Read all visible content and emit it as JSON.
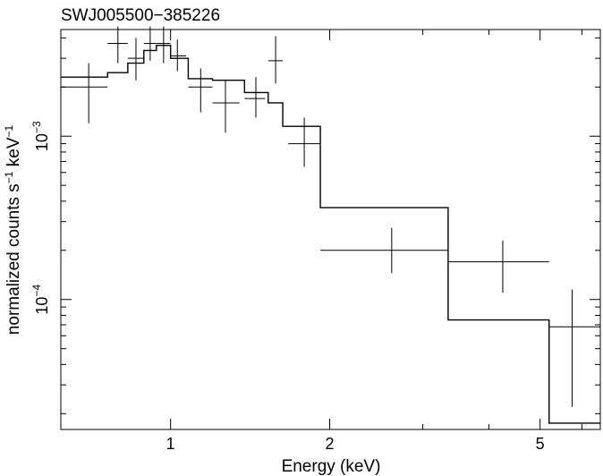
{
  "chart_data": {
    "type": "scatter",
    "title": "SWJ005500−385226",
    "xlabel": "Energy (keV)",
    "ylabel": {
      "base": "normalized counts s",
      "sup1": "−1",
      "mid": " keV",
      "sup2": "−1"
    },
    "x_scale": "log",
    "y_scale": "log",
    "xlim": [
      0.62,
      6.5
    ],
    "ylim": [
      1.6e-05,
      0.0045
    ],
    "x_ticks": [
      {
        "value": 1,
        "label": "1"
      },
      {
        "value": 2,
        "label": "2"
      },
      {
        "value": 5,
        "label": "5"
      }
    ],
    "y_ticks": [
      {
        "value": 0.001,
        "label": {
          "base": "10",
          "exp": "−3"
        }
      },
      {
        "value": 0.0001,
        "label": {
          "base": "10",
          "exp": "−4"
        }
      }
    ],
    "series": [
      {
        "kind": "data",
        "points": [
          {
            "x": 0.7,
            "xlo": 0.62,
            "xhi": 0.76,
            "y": 0.002,
            "ylo": 0.0012,
            "yhi": 0.0028
          },
          {
            "x": 0.795,
            "xlo": 0.76,
            "xhi": 0.83,
            "y": 0.0037,
            "ylo": 0.0028,
            "yhi": 0.0047
          },
          {
            "x": 0.86,
            "xlo": 0.83,
            "xhi": 0.89,
            "y": 0.003,
            "ylo": 0.0022,
            "yhi": 0.004
          },
          {
            "x": 0.915,
            "xlo": 0.89,
            "xhi": 0.94,
            "y": 0.0037,
            "ylo": 0.0029,
            "yhi": 0.0047
          },
          {
            "x": 0.97,
            "xlo": 0.94,
            "xhi": 1.0,
            "y": 0.0037,
            "ylo": 0.0028,
            "yhi": 0.0047
          },
          {
            "x": 1.03,
            "xlo": 1.0,
            "xhi": 1.07,
            "y": 0.0031,
            "ylo": 0.0025,
            "yhi": 0.0039
          },
          {
            "x": 1.14,
            "xlo": 1.08,
            "xhi": 1.2,
            "y": 0.002,
            "ylo": 0.0014,
            "yhi": 0.0026
          },
          {
            "x": 1.27,
            "xlo": 1.2,
            "xhi": 1.35,
            "y": 0.0016,
            "ylo": 0.00105,
            "yhi": 0.0022
          },
          {
            "x": 1.45,
            "xlo": 1.38,
            "xhi": 1.51,
            "y": 0.0017,
            "ylo": 0.0013,
            "yhi": 0.0023
          },
          {
            "x": 1.58,
            "xlo": 1.53,
            "xhi": 1.63,
            "y": 0.0029,
            "ylo": 0.0021,
            "yhi": 0.0041
          },
          {
            "x": 1.79,
            "xlo": 1.67,
            "xhi": 1.92,
            "y": 0.0009,
            "ylo": 0.00065,
            "yhi": 0.0013
          },
          {
            "x": 2.62,
            "xlo": 1.92,
            "xhi": 3.35,
            "y": 0.0002,
            "ylo": 0.000145,
            "yhi": 0.000275
          },
          {
            "x": 4.25,
            "xlo": 3.35,
            "xhi": 5.2,
            "y": 0.00017,
            "ylo": 0.00011,
            "yhi": 0.00023
          },
          {
            "x": 5.75,
            "xlo": 5.2,
            "xhi": 6.5,
            "y": 6.8e-05,
            "ylo": 2.2e-05,
            "yhi": 0.000115
          }
        ]
      },
      {
        "kind": "model",
        "steps": [
          {
            "xlo": 0.62,
            "xhi": 0.76,
            "y": 0.0023
          },
          {
            "xlo": 0.76,
            "xhi": 0.83,
            "y": 0.00245
          },
          {
            "xlo": 0.83,
            "xhi": 0.89,
            "y": 0.0028
          },
          {
            "xlo": 0.89,
            "xhi": 0.94,
            "y": 0.00335
          },
          {
            "xlo": 0.94,
            "xhi": 1.0,
            "y": 0.0036
          },
          {
            "xlo": 1.0,
            "xhi": 1.08,
            "y": 0.003
          },
          {
            "xlo": 1.08,
            "xhi": 1.2,
            "y": 0.00225
          },
          {
            "xlo": 1.2,
            "xhi": 1.38,
            "y": 0.0022
          },
          {
            "xlo": 1.38,
            "xhi": 1.53,
            "y": 0.00185
          },
          {
            "xlo": 1.53,
            "xhi": 1.63,
            "y": 0.0016
          },
          {
            "xlo": 1.63,
            "xhi": 1.92,
            "y": 0.00115
          },
          {
            "xlo": 1.92,
            "xhi": 3.35,
            "y": 0.000365
          },
          {
            "xlo": 3.35,
            "xhi": 5.2,
            "y": 7.5e-05
          },
          {
            "xlo": 5.2,
            "xhi": 6.5,
            "y": 1.75e-05
          }
        ]
      }
    ],
    "grid": false,
    "colors": {
      "line": "#000000",
      "background": "#ffffff"
    }
  }
}
